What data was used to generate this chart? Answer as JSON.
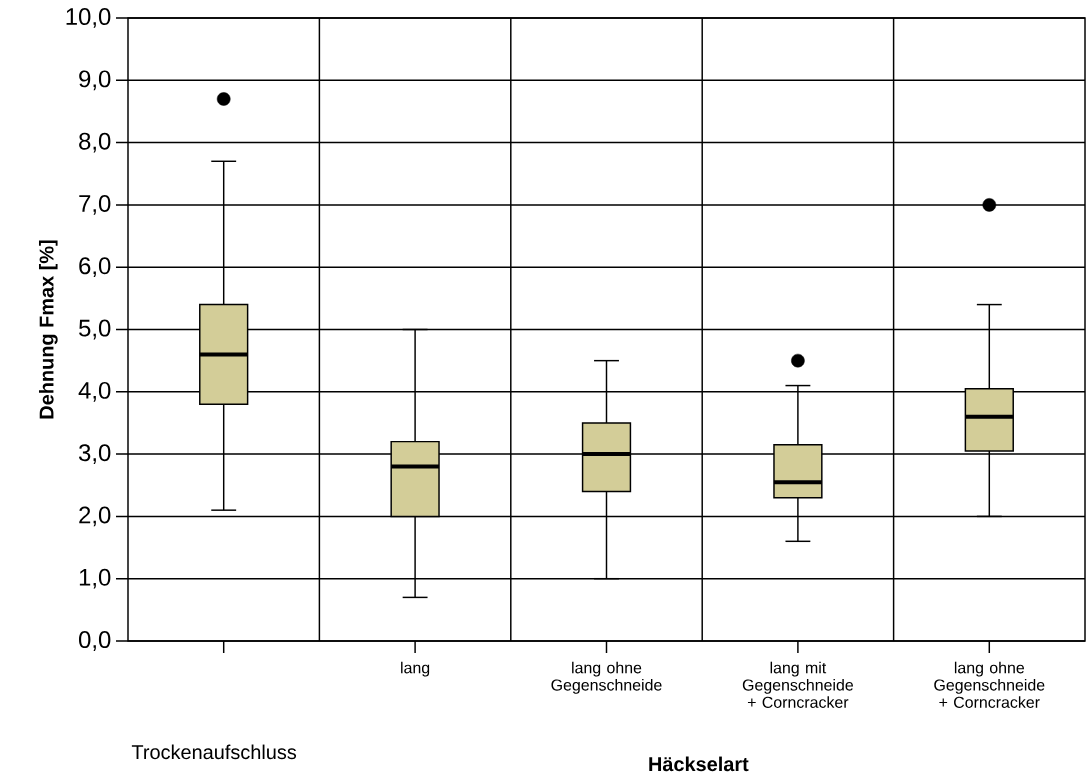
{
  "chart_data": {
    "type": "box",
    "ylabel": "Dehnung Fmax [%]",
    "xlabel": "Häckselart",
    "categories": [
      null,
      "lang",
      "lang ohne Gegenschneide",
      "lang mit Gegenschneide + Corncracker",
      "lang ohne Gegenschneide + Corncracker"
    ],
    "boxes": [
      {
        "low": 2.1,
        "q1": 3.8,
        "median": 4.6,
        "q3": 5.4,
        "high": 7.7,
        "outliers": [
          8.7
        ]
      },
      {
        "low": 0.7,
        "q1": 2.0,
        "median": 2.8,
        "q3": 3.2,
        "high": 5.0
      },
      {
        "low": 1.0,
        "q1": 2.4,
        "median": 3.0,
        "q3": 3.5,
        "high": 4.5
      },
      {
        "low": 1.6,
        "q1": 2.3,
        "median": 2.55,
        "q3": 3.15,
        "high": 4.1,
        "outliers": [
          4.5
        ]
      },
      {
        "low": 2.0,
        "q1": 3.05,
        "median": 3.6,
        "q3": 4.05,
        "high": 5.4,
        "outliers": [
          7.0
        ]
      }
    ],
    "color": "#d3cd98",
    "ylim": [
      0,
      10
    ],
    "yticks": [
      {
        "value": 0,
        "label": "0,0"
      },
      {
        "value": 1,
        "label": "1,0"
      },
      {
        "value": 2,
        "label": "2,0"
      },
      {
        "value": 3,
        "label": "3,0"
      },
      {
        "value": 4,
        "label": "4,0"
      },
      {
        "value": 5,
        "label": "5,0"
      },
      {
        "value": 6,
        "label": "6,0"
      },
      {
        "value": 7,
        "label": "7,0"
      },
      {
        "value": 8,
        "label": "8,0"
      },
      {
        "value": 9,
        "label": "9,0"
      },
      {
        "value": 10,
        "label": "10,0"
      }
    ],
    "grid": true,
    "marker": "circle",
    "annotations": [
      "Trockenaufschluss"
    ]
  }
}
